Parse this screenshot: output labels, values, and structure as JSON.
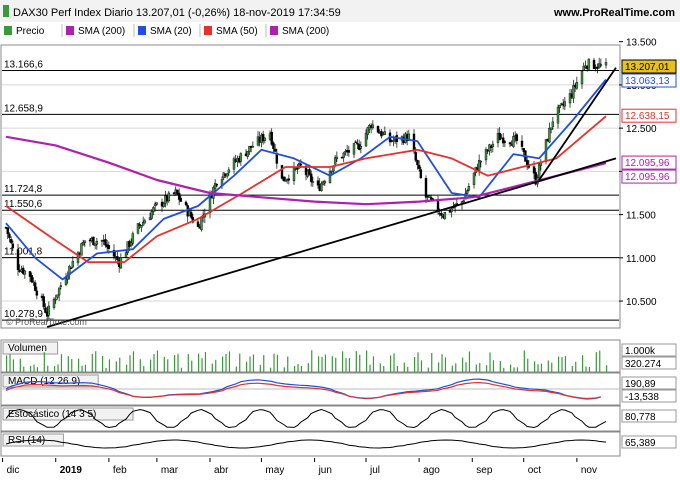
{
  "header": {
    "title": "DAX30 Perf Index Diario 13.207,01 (-0,26%) 18-nov-2019 17:34:59",
    "site": "www.ProRealTime.com",
    "watermark": "© ProRealTime.com"
  },
  "colors": {
    "price": "#000000",
    "sma20": "#1f4fe0",
    "sma50": "#e8302a",
    "sma200": "#b020b0",
    "volume": "#3a9a3a",
    "macd_line": "#1f4fe0",
    "macd_signal": "#e8302a",
    "grid": "#d8d8d8"
  },
  "legend": [
    {
      "label": "Precio",
      "color": "#3a9a3a",
      "icon": "candle-icon"
    },
    {
      "label": "SMA (200)",
      "color": "#b020b0",
      "icon": "swatch-icon"
    },
    {
      "label": "SMA (20)",
      "color": "#1f4fe0",
      "icon": "swatch-icon"
    },
    {
      "label": "SMA (50)",
      "color": "#e8302a",
      "icon": "swatch-icon"
    },
    {
      "label": "SMA (200)",
      "color": "#b020b0",
      "icon": "swatch-icon"
    }
  ],
  "chart_data": {
    "type": "candlestick",
    "ylim": [
      10200,
      13450
    ],
    "y_ticks": [
      "13.500",
      "13.000",
      "12.500",
      "12.000",
      "11.500",
      "11.000",
      "10.500"
    ],
    "y_tick_values": [
      13500,
      13000,
      12500,
      12000,
      11500,
      11000,
      10500
    ],
    "x_ticks": [
      "dic",
      "2019",
      "feb",
      "mar",
      "abr",
      "may",
      "jun",
      "jul",
      "ago",
      "sep",
      "oct",
      "nov"
    ],
    "x_tick_dates": [
      "2018-12-01",
      "2019-01-01",
      "2019-02-01",
      "2019-03-01",
      "2019-04-01",
      "2019-05-01",
      "2019-06-01",
      "2019-07-01",
      "2019-08-01",
      "2019-09-01",
      "2019-10-01",
      "2019-11-01"
    ],
    "date_range": [
      "2018-12-03",
      "2019-11-18"
    ],
    "horizontal_levels": [
      {
        "label": "13.166,6",
        "value": 13166.6
      },
      {
        "label": "12.658,9",
        "value": 12658.9
      },
      {
        "label": "11.724,8",
        "value": 11724.8
      },
      {
        "label": "11.550,6",
        "value": 11550.6
      },
      {
        "label": "11.001,8",
        "value": 11001.8
      },
      {
        "label": "10.278,9",
        "value": 10278.9
      }
    ],
    "value_badges": [
      {
        "label": "13.207,01",
        "value": 13207.01,
        "color": "#e8c020",
        "text_color": "#000000"
      },
      {
        "label": "13.063,13",
        "value": 13063.13,
        "color": "#ffffff",
        "text_color": "#1f4fe0"
      },
      {
        "label": "12.638,15",
        "value": 12638.15,
        "color": "#ffffff",
        "text_color": "#e8302a"
      },
      {
        "label": "12.095,96",
        "value": 12095.96,
        "color": "#ffffff",
        "text_color": "#b020b0"
      },
      {
        "label": "12.095,96",
        "value": 12095.96,
        "color": "#ffffff",
        "text_color": "#b020b0"
      }
    ],
    "price_path": [
      [
        "2018-12-03",
        11350
      ],
      [
        "2018-12-10",
        10900
      ],
      [
        "2018-12-17",
        10800
      ],
      [
        "2018-12-27",
        10350
      ],
      [
        "2019-01-08",
        10850
      ],
      [
        "2019-01-18",
        11200
      ],
      [
        "2019-01-28",
        11200
      ],
      [
        "2019-02-07",
        10950
      ],
      [
        "2019-02-18",
        11350
      ],
      [
        "2019-03-01",
        11600
      ],
      [
        "2019-03-12",
        11750
      ],
      [
        "2019-03-25",
        11350
      ],
      [
        "2019-04-05",
        11900
      ],
      [
        "2019-04-15",
        12100
      ],
      [
        "2019-04-26",
        12300
      ],
      [
        "2019-05-06",
        12450
      ],
      [
        "2019-05-13",
        11900
      ],
      [
        "2019-05-24",
        12050
      ],
      [
        "2019-06-03",
        11800
      ],
      [
        "2019-06-14",
        12150
      ],
      [
        "2019-06-27",
        12300
      ],
      [
        "2019-07-04",
        12550
      ],
      [
        "2019-07-15",
        12350
      ],
      [
        "2019-07-26",
        12400
      ],
      [
        "2019-08-05",
        11700
      ],
      [
        "2019-08-15",
        11500
      ],
      [
        "2019-08-26",
        11650
      ],
      [
        "2019-09-05",
        12100
      ],
      [
        "2019-09-16",
        12400
      ],
      [
        "2019-09-27",
        12350
      ],
      [
        "2019-10-08",
        11900
      ],
      [
        "2019-10-18",
        12600
      ],
      [
        "2019-10-29",
        12900
      ],
      [
        "2019-11-06",
        13250
      ],
      [
        "2019-11-18",
        13207
      ]
    ],
    "series": [
      {
        "name": "SMA (20)",
        "color": "#1f4fe0",
        "points": [
          [
            "2018-12-03",
            11400
          ],
          [
            "2018-12-20",
            11000
          ],
          [
            "2019-01-05",
            10750
          ],
          [
            "2019-01-25",
            11050
          ],
          [
            "2019-02-15",
            11100
          ],
          [
            "2019-03-05",
            11450
          ],
          [
            "2019-03-25",
            11600
          ],
          [
            "2019-04-15",
            11950
          ],
          [
            "2019-05-01",
            12250
          ],
          [
            "2019-05-20",
            12150
          ],
          [
            "2019-06-10",
            11950
          ],
          [
            "2019-06-28",
            12150
          ],
          [
            "2019-07-15",
            12400
          ],
          [
            "2019-07-31",
            12350
          ],
          [
            "2019-08-20",
            11750
          ],
          [
            "2019-09-05",
            11700
          ],
          [
            "2019-09-25",
            12200
          ],
          [
            "2019-10-10",
            12150
          ],
          [
            "2019-10-30",
            12600
          ],
          [
            "2019-11-18",
            13063
          ]
        ]
      },
      {
        "name": "SMA (50)",
        "color": "#e8302a",
        "points": [
          [
            "2018-12-03",
            11600
          ],
          [
            "2019-01-01",
            11200
          ],
          [
            "2019-01-20",
            10950
          ],
          [
            "2019-02-10",
            10950
          ],
          [
            "2019-03-01",
            11250
          ],
          [
            "2019-03-25",
            11450
          ],
          [
            "2019-04-20",
            11750
          ],
          [
            "2019-05-15",
            12050
          ],
          [
            "2019-06-10",
            12050
          ],
          [
            "2019-07-01",
            12150
          ],
          [
            "2019-07-31",
            12250
          ],
          [
            "2019-08-20",
            12150
          ],
          [
            "2019-09-10",
            11950
          ],
          [
            "2019-09-30",
            12050
          ],
          [
            "2019-10-20",
            12150
          ],
          [
            "2019-11-18",
            12638
          ]
        ]
      },
      {
        "name": "SMA (200)",
        "color": "#b020b0",
        "points": [
          [
            "2018-12-03",
            12400
          ],
          [
            "2019-01-01",
            12300
          ],
          [
            "2019-02-01",
            12100
          ],
          [
            "2019-03-01",
            11900
          ],
          [
            "2019-04-01",
            11750
          ],
          [
            "2019-05-01",
            11700
          ],
          [
            "2019-06-01",
            11650
          ],
          [
            "2019-07-01",
            11620
          ],
          [
            "2019-08-01",
            11650
          ],
          [
            "2019-09-01",
            11700
          ],
          [
            "2019-10-01",
            11850
          ],
          [
            "2019-11-18",
            12096
          ]
        ]
      }
    ],
    "trendlines": [
      {
        "from": [
          "2018-12-27",
          10200
        ],
        "to": [
          "2019-11-18",
          12150
        ]
      },
      {
        "from": [
          "2019-10-10",
          11900
        ],
        "to": [
          "2019-11-18",
          13200
        ]
      }
    ],
    "volume_scale": "1.000k",
    "volume_value": "320.274",
    "indicator_panels": [
      {
        "name": "Volumen",
        "values": [
          "1.000k",
          "320.274"
        ]
      },
      {
        "name": "MACD (12 26 9)",
        "values": [
          "190,89",
          "-13,538"
        ]
      },
      {
        "name": "Estocástico (14 3 5)",
        "values": [
          "80,778"
        ]
      },
      {
        "name": "RSI (14)",
        "values": [
          "65,389"
        ]
      }
    ]
  }
}
